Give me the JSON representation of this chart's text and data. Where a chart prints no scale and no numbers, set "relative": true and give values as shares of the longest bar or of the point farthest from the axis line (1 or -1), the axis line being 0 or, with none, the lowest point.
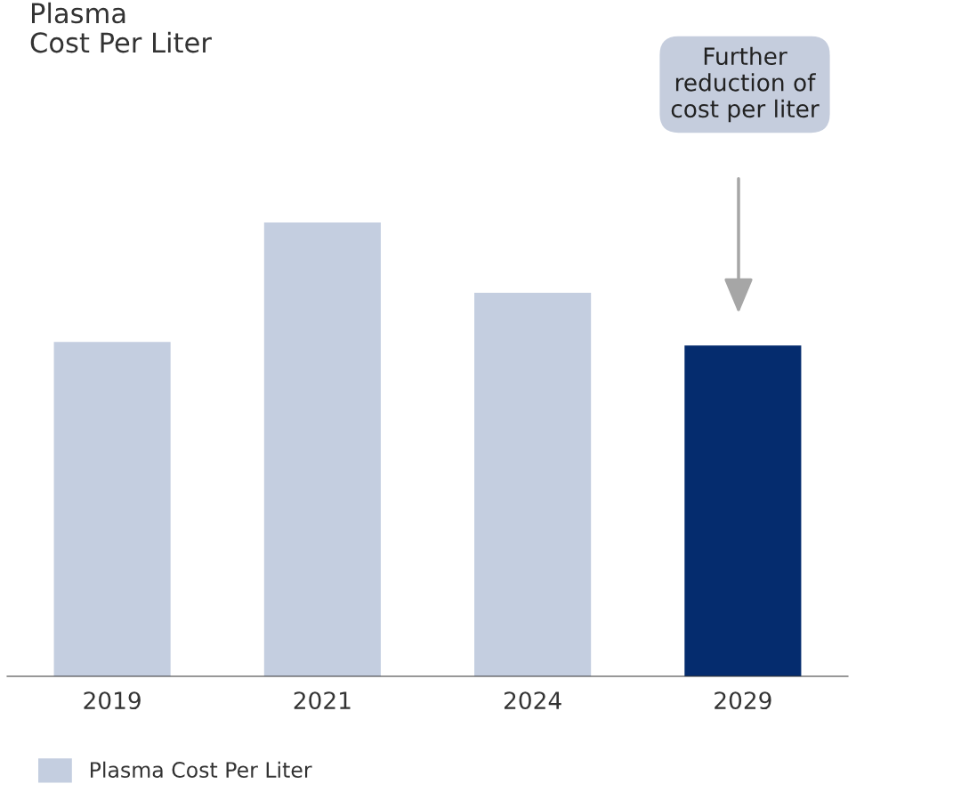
{
  "chart_data": {
    "type": "bar",
    "title": "Plasma\nCost Per Liter",
    "relative": true,
    "categories": [
      "2019",
      "2021",
      "2024",
      "2029"
    ],
    "series": [
      {
        "name": "Plasma Cost Per Liter",
        "color": "#c4cee0",
        "colors": [
          "#c4cee0",
          "#c4cee0",
          "#c4cee0",
          "#052c6e"
        ],
        "values": [
          0.737,
          1,
          0.845,
          0.729
        ]
      }
    ],
    "annotations": [
      "Further\nreduction of\ncost per liter"
    ],
    "legend": "bottom left",
    "grid": false
  }
}
